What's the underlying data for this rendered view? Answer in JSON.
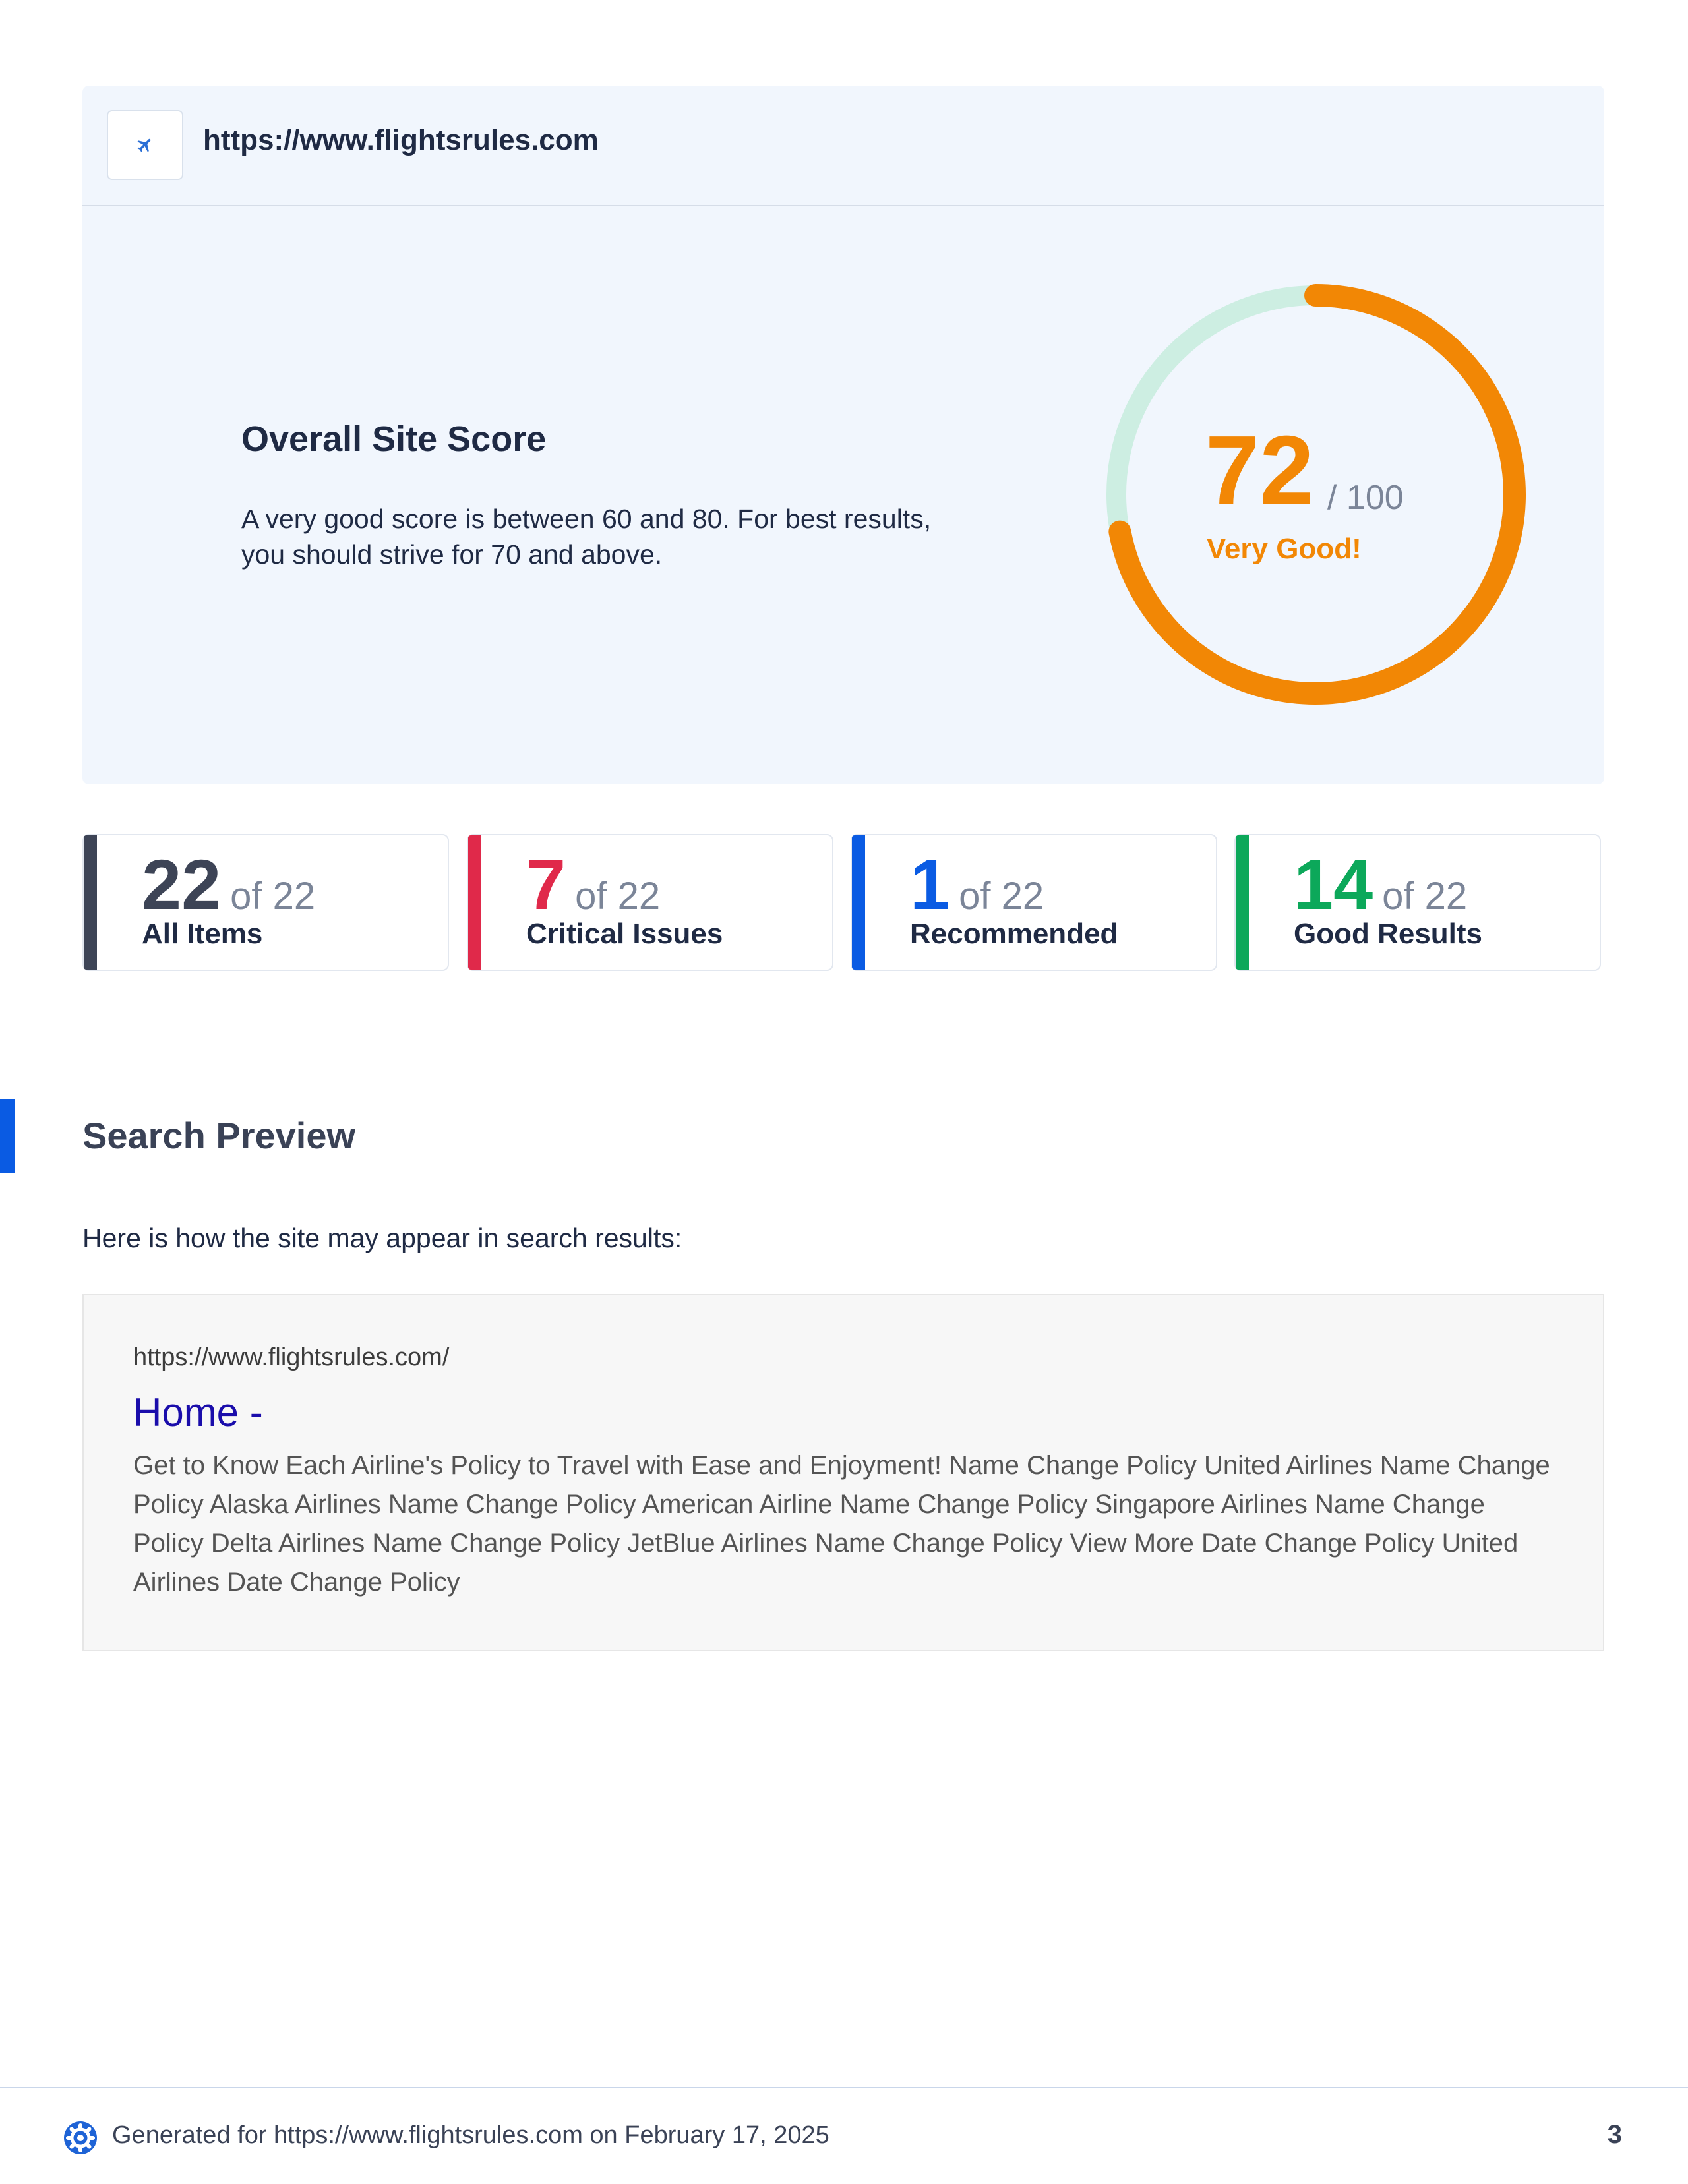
{
  "site": {
    "url": "https://www.flightsrules.com",
    "favicon_icon": "airplane-icon"
  },
  "score": {
    "title": "Overall Site Score",
    "description": "A very good score is between 60 and 80. For best results, you should strive for 70 and above.",
    "value": 72,
    "value_text": "72",
    "max_text": "/ 100",
    "label": "Very Good!",
    "gauge_fraction": 0.72,
    "accent_color": "#f28705",
    "track_color": "#cdeee2"
  },
  "stats": [
    {
      "value": "22",
      "of": "of 22",
      "label": "All Items",
      "color": "#3d4456"
    },
    {
      "value": "7",
      "of": "of 22",
      "label": "Critical Issues",
      "color": "#e0294a"
    },
    {
      "value": "1",
      "of": "of 22",
      "label": "Recommended",
      "color": "#0a5be3"
    },
    {
      "value": "14",
      "of": "of 22",
      "label": "Good Results",
      "color": "#0ca85a"
    }
  ],
  "search_preview": {
    "title": "Search Preview",
    "intro": "Here is how the site may appear in search results:",
    "result_url": "https://www.flightsrules.com/",
    "result_title": "Home -",
    "result_snippet": "Get to Know Each Airline's Policy to Travel with Ease and Enjoyment! Name Change Policy United Airlines Name Change Policy Alaska Airlines Name Change Policy American Airline Name Change Policy Singapore Airlines Name Change Policy Delta Airlines Name Change Policy JetBlue Airlines Name Change Policy View More Date Change Policy United Airlines Date Change Policy"
  },
  "footer": {
    "logo_icon": "gear-logo-icon",
    "text": "Generated for https://www.flightsrules.com on February 17, 2025",
    "page_number": "3"
  }
}
